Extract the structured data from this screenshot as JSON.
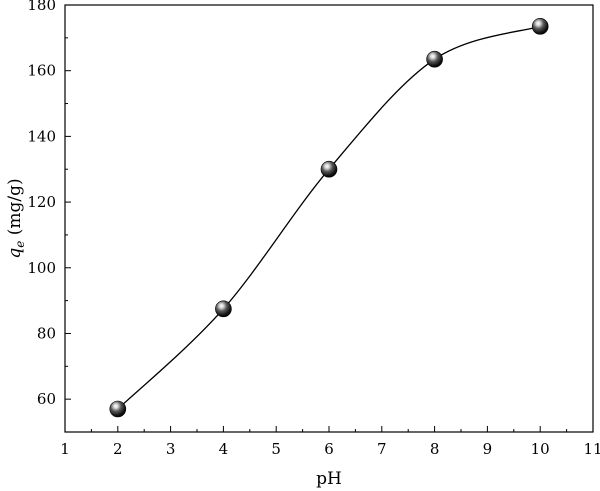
{
  "chart_data": {
    "type": "scatter",
    "title": "",
    "xlabel": "pH",
    "ylabel": {
      "symbol": "q",
      "subscript": "e",
      "unit": " (mg/g)"
    },
    "xlim": [
      1,
      11
    ],
    "ylim": [
      50,
      180
    ],
    "x_ticks": [
      1,
      2,
      3,
      4,
      5,
      6,
      7,
      8,
      9,
      10,
      11
    ],
    "y_ticks": [
      60,
      80,
      100,
      120,
      140,
      160,
      180
    ],
    "grid": false,
    "legend": "none",
    "series": [
      {
        "x": [
          2,
          4,
          6,
          8,
          10
        ],
        "y": [
          57,
          87.5,
          130,
          163.5,
          173.5
        ],
        "marker": "sphere",
        "fit_curve": true,
        "color": "#000000"
      }
    ]
  }
}
